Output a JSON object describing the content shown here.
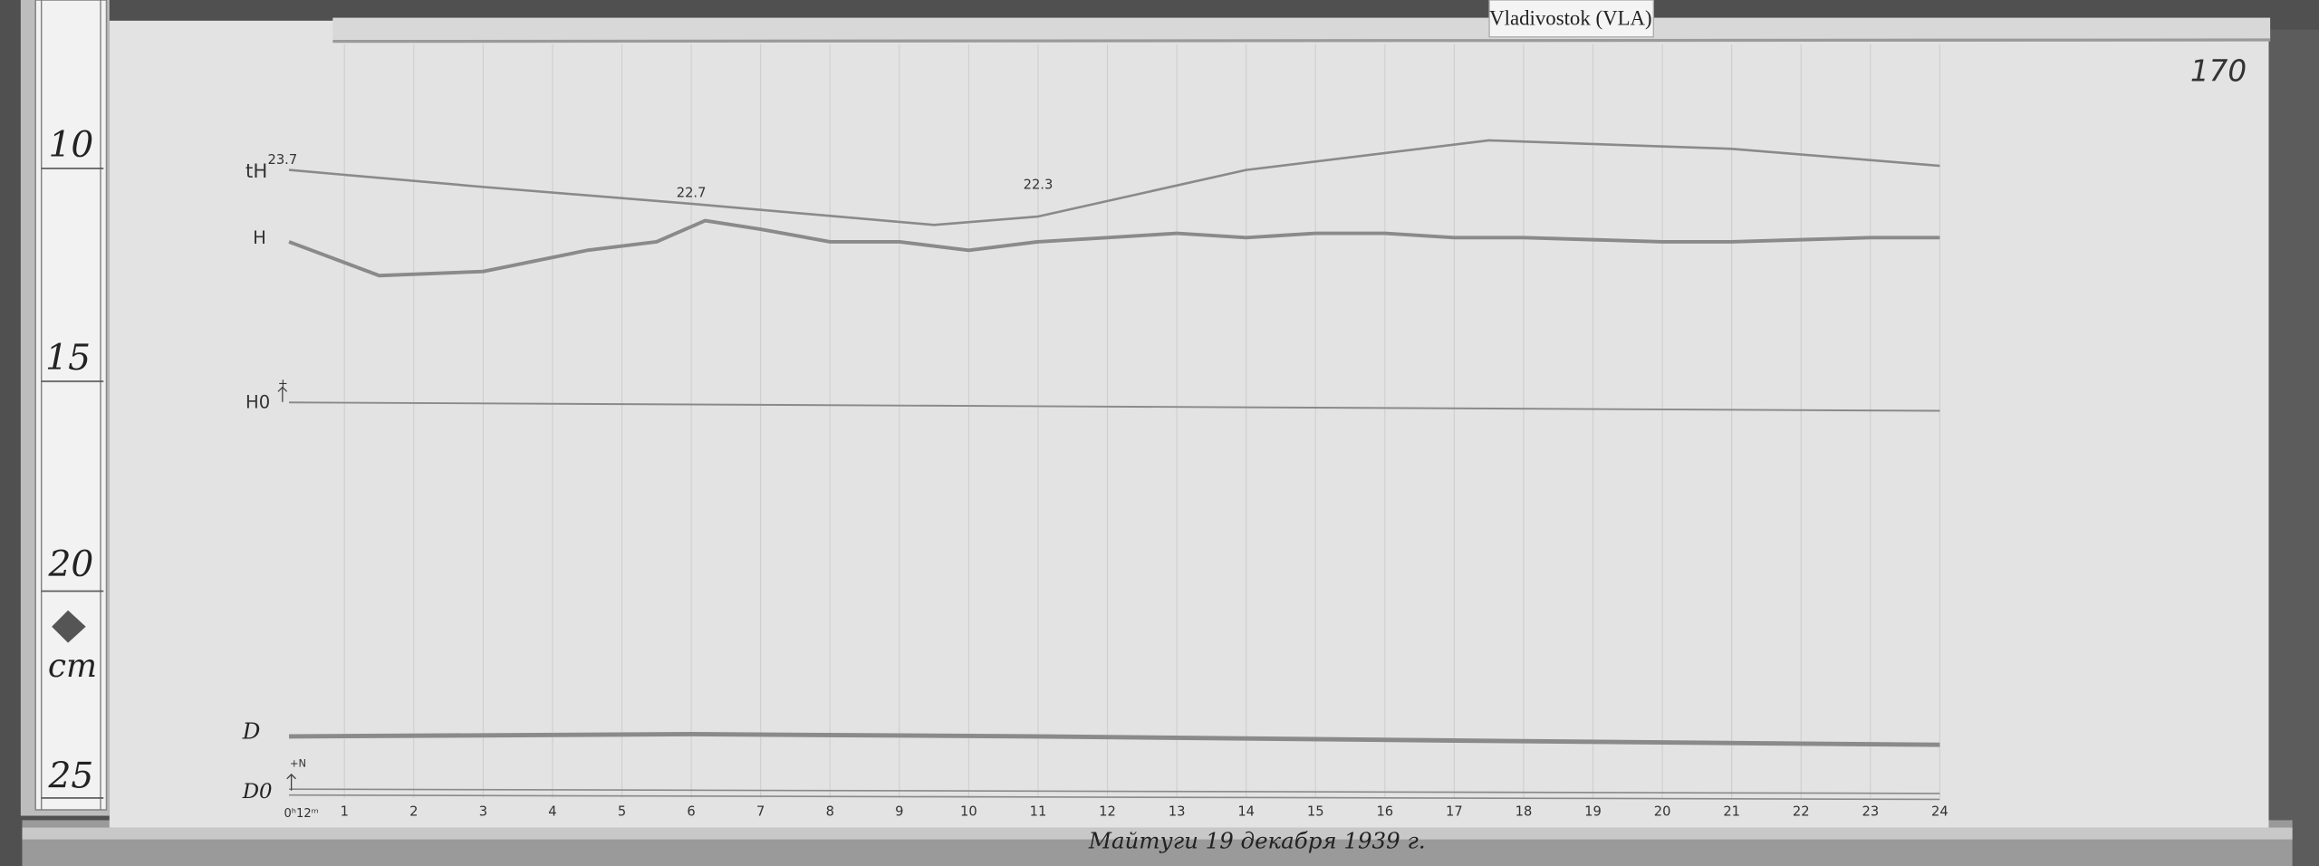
{
  "station_label": "Vladivostok (VLA)",
  "sheet_number": "170",
  "ruler": {
    "ticks": [
      "10",
      "15",
      "20",
      "25"
    ],
    "unit": "cm"
  },
  "footer_caption": "Майтуги 19 декабря 1939 г.",
  "chart_data": {
    "type": "line",
    "title": "",
    "xlabel": "",
    "ylabel": "",
    "x_unit": "hours",
    "xlim": [
      0,
      24
    ],
    "x_start_label": "0ʰ12ᵐ",
    "x_tick_labels": [
      "1",
      "2",
      "3",
      "4",
      "5",
      "6",
      "7",
      "8",
      "9",
      "10",
      "11",
      "12",
      "13",
      "14",
      "15",
      "16",
      "17",
      "18",
      "19",
      "20",
      "21",
      "22",
      "23",
      "24"
    ],
    "y_unit": "cm (ruler scale)",
    "ylim": [
      8,
      26
    ],
    "grid": "vertical hour lines",
    "annotations": [
      {
        "text": "22.7",
        "x": 6.0,
        "y": 11.8
      },
      {
        "text": "22.3",
        "x": 11.0,
        "y": 11.6
      }
    ],
    "series": [
      {
        "name": "tH",
        "superscript": "23.7",
        "x": [
          0.2,
          3,
          6,
          9.5,
          11,
          14,
          17.5,
          21,
          24
        ],
        "y": [
          10.7,
          11.1,
          11.5,
          12.0,
          11.8,
          10.7,
          10.0,
          10.2,
          10.6
        ]
      },
      {
        "name": "H",
        "x": [
          0.2,
          1.5,
          3,
          4.5,
          5.5,
          6.2,
          7,
          8,
          9,
          10,
          11,
          12,
          13,
          14,
          15,
          16,
          17,
          18,
          19,
          20,
          21,
          22,
          23,
          24
        ],
        "y": [
          12.4,
          13.2,
          13.1,
          12.6,
          12.4,
          11.9,
          12.1,
          12.4,
          12.4,
          12.6,
          12.4,
          12.3,
          12.2,
          12.3,
          12.2,
          12.2,
          12.3,
          12.3,
          12.35,
          12.4,
          12.4,
          12.35,
          12.3,
          12.3
        ]
      },
      {
        "name": "H0",
        "x": [
          0.2,
          24
        ],
        "y": [
          16.2,
          16.4
        ]
      },
      {
        "name": "D",
        "x": [
          0.2,
          6,
          11,
          17,
          24
        ],
        "y": [
          24.1,
          24.05,
          24.1,
          24.2,
          24.3
        ]
      },
      {
        "name": "D0",
        "x": [
          0.2,
          24
        ],
        "y": [
          25.35,
          25.45
        ]
      }
    ],
    "arrow_label": "+N",
    "colors": {
      "paper": "#e3e3e3",
      "trace": "#8a8a8a",
      "background": "#4a4a4a"
    }
  }
}
